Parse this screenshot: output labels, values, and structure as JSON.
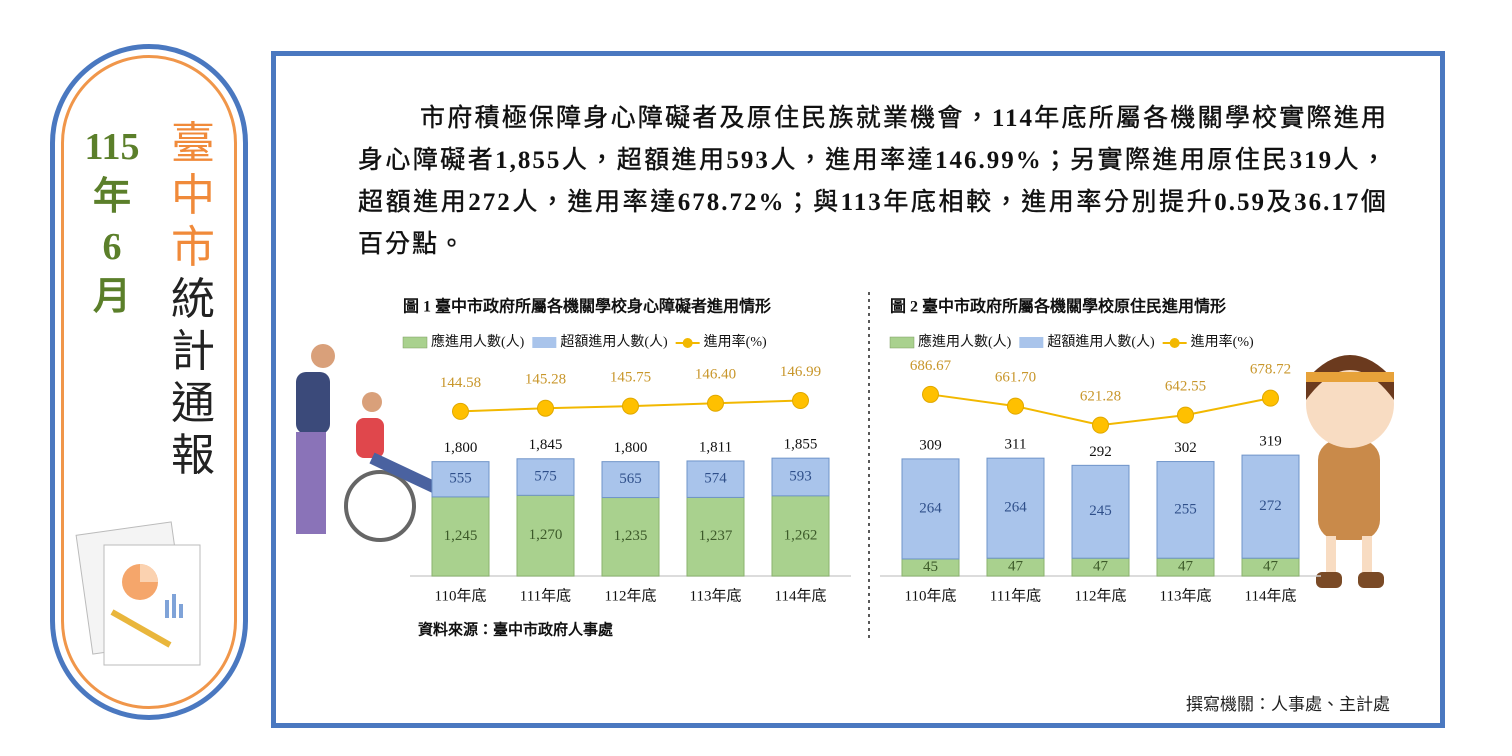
{
  "sidebar": {
    "year": "115",
    "year_unit": "年",
    "month": "6",
    "month_unit": "月",
    "title_highlight": "臺中市",
    "title_rest": "統計通報"
  },
  "summary": [
    "市府積極保障身心障礙者及原住民族就業機會，",
    "114",
    "年底所屬各機關學校實際進用身心障礙者",
    "1,855",
    "人，超額進用",
    "593",
    "人，進用率達",
    "146.99%",
    "；另實際進用原住民",
    "319",
    "人，超額進用",
    "272",
    "人，進用率達",
    "678.72%",
    "；與",
    "113",
    "年底相較，進用率分別提升",
    "0.59",
    "及",
    "36.17",
    "個百分點。"
  ],
  "source": "資料來源：臺中市政府人事處",
  "author": "撰寫機關：人事處、主計處",
  "chart_data": [
    {
      "type": "bar",
      "stacked": true,
      "title": "圖 1 臺中市政府所屬各機關學校身心障礙者進用情形",
      "categories": [
        "110年底",
        "111年底",
        "112年底",
        "113年底",
        "114年底"
      ],
      "series": [
        {
          "name": "應進用人數(人)",
          "color": "#a9d18e",
          "values": [
            1245,
            1270,
            1235,
            1237,
            1262
          ],
          "value_labels": [
            "1,245",
            "1,270",
            "1,235",
            "1,237",
            "1,262"
          ]
        },
        {
          "name": "超額進用人數(人)",
          "color": "#a9c4eb",
          "values": [
            555,
            575,
            565,
            574,
            593
          ]
        },
        {
          "name": "進用率(%)",
          "type": "line",
          "axis": "y2",
          "color": "#f2b800",
          "values": [
            144.58,
            145.28,
            145.75,
            146.4,
            146.99
          ],
          "value_labels": [
            "144.58",
            "145.28",
            "145.75",
            "146.40",
            "146.99"
          ]
        }
      ],
      "totals": [
        1800,
        1845,
        1800,
        1811,
        1855
      ],
      "total_labels": [
        "1,800",
        "1,845",
        "1,800",
        "1,811",
        "1,855"
      ],
      "ylim": [
        0,
        3400
      ],
      "y2lim": [
        108,
        156
      ]
    },
    {
      "type": "bar",
      "stacked": true,
      "title": "圖 2 臺中市政府所屬各機關學校原住民進用情形",
      "categories": [
        "110年底",
        "111年底",
        "112年底",
        "113年底",
        "114年底"
      ],
      "series": [
        {
          "name": "應進用人數(人)",
          "color": "#a9d18e",
          "values": [
            45,
            47,
            47,
            47,
            47
          ]
        },
        {
          "name": "超額進用人數(人)",
          "color": "#a9c4eb",
          "values": [
            264,
            264,
            245,
            255,
            272
          ]
        },
        {
          "name": "進用率(%)",
          "type": "line",
          "axis": "y2",
          "color": "#f2b800",
          "values": [
            686.67,
            661.7,
            621.28,
            642.55,
            678.72
          ],
          "value_labels": [
            "686.67",
            "661.70",
            "621.28",
            "642.55",
            "678.72"
          ]
        }
      ],
      "totals": [
        309,
        311,
        292,
        302,
        319
      ],
      "ylim": [
        0,
        570
      ],
      "y2lim": [
        300,
        760
      ]
    }
  ]
}
